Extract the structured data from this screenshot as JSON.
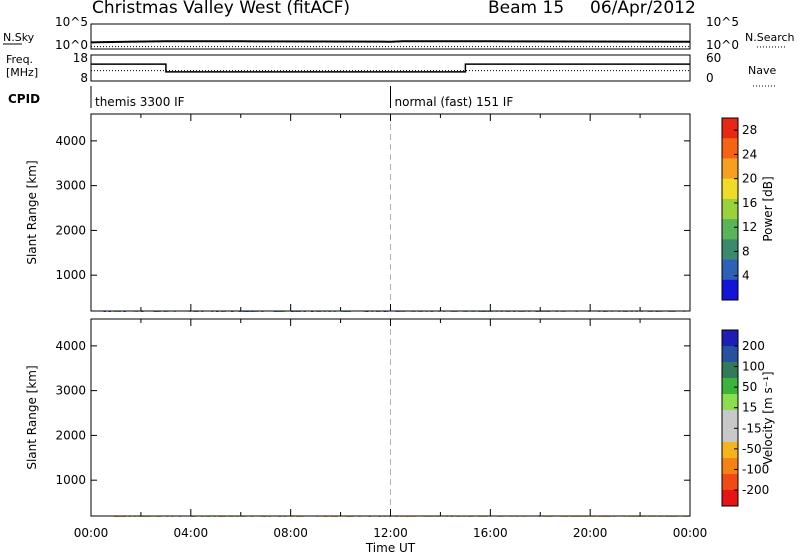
{
  "header": {
    "title": "Christmas Valley West (fitACF)",
    "beam": "Beam 15",
    "date": "06/Apr/2012"
  },
  "colors": {
    "frame": "#000000",
    "dashed_divider": "#b4b4b4",
    "power_scale": [
      "#1414d8",
      "#2f60b8",
      "#3c8a6e",
      "#5ab45a",
      "#9bd23c",
      "#f0dc28",
      "#f5a01e",
      "#f56414",
      "#e62814"
    ],
    "velocity_scale": [
      "#e61414",
      "#f04b14",
      "#f58214",
      "#f5b41e",
      "#c8c8c8",
      "#c8c8c8",
      "#8cdc50",
      "#3cb43c",
      "#327a5a",
      "#2850a0",
      "#1e1eb4"
    ]
  },
  "chart_data": [
    {
      "id": "noise-panel",
      "type": "line",
      "left_label": "N.Sky",
      "left_ticks": [
        "10^5",
        "10^0"
      ],
      "right_label": "N.Search",
      "right_ticks": [
        "10^5",
        "10^0"
      ],
      "series": [
        {
          "style": "solid",
          "x_hours": [
            0,
            0.5,
            3,
            6,
            12,
            12.5,
            16,
            24
          ],
          "y": [
            1.2,
            1.3,
            1.5,
            1.5,
            1.4,
            1.5,
            1.5,
            1.4
          ]
        },
        {
          "style": "dotted",
          "x_hours": [
            0,
            12,
            24
          ],
          "y": [
            0.1,
            0.1,
            0.1
          ]
        }
      ]
    },
    {
      "id": "frequency-panel",
      "type": "line",
      "left_label_lines": [
        "Freq.",
        "[MHz]"
      ],
      "left_ticks": [
        "18",
        "8"
      ],
      "right_label": "Nave",
      "right_ticks": [
        "60",
        "0"
      ],
      "series": [
        {
          "name": "Freq.",
          "style": "solid",
          "x_hours": [
            0,
            3,
            3,
            12.1,
            12.1,
            15,
            15,
            24
          ],
          "y": [
            14.5,
            14.5,
            11.5,
            11.5,
            11.5,
            11.5,
            14.5,
            14.5
          ]
        },
        {
          "name": "Nave",
          "style": "dotted",
          "x_hours": [
            0,
            24
          ],
          "y": [
            24,
            24
          ]
        }
      ]
    },
    {
      "id": "cpid-panel",
      "type": "table",
      "label": "CPID",
      "segments": [
        {
          "start_hour": 0,
          "end_hour": 12,
          "text": "themis 3300 IF"
        },
        {
          "start_hour": 12,
          "end_hour": 24,
          "text": "normal (fast) 151 IF"
        }
      ]
    },
    {
      "id": "power-panel",
      "type": "heatmap",
      "ylabel": "Slant Range [km]",
      "yticks": [
        1000,
        2000,
        3000,
        4000
      ],
      "ylim": [
        200,
        4600
      ],
      "xlim_hours": [
        0,
        24
      ],
      "colorbar_label": "Power [dB]",
      "colorbar_ticks": [
        4,
        8,
        12,
        16,
        20,
        24,
        28
      ],
      "colorbar_range": [
        0,
        30
      ]
    },
    {
      "id": "velocity-panel",
      "type": "heatmap",
      "ylabel": "Slant Range [km]",
      "yticks": [
        1000,
        2000,
        3000,
        4000
      ],
      "ylim": [
        200,
        4600
      ],
      "xlim_hours": [
        0,
        24
      ],
      "xlabel": "Time UT",
      "xticks": [
        "00:00",
        "04:00",
        "08:00",
        "12:00",
        "16:00",
        "20:00",
        "00:00"
      ],
      "colorbar_label": "Velocity [m s⁻¹]",
      "colorbar_ticks": [
        200,
        100,
        50,
        15,
        -15,
        -50,
        -100,
        -200
      ]
    }
  ]
}
